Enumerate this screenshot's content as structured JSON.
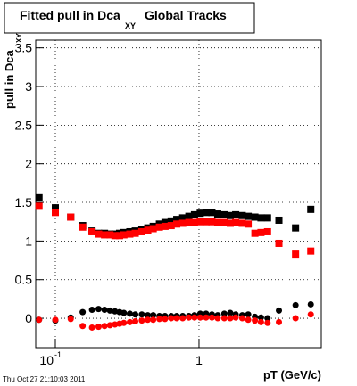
{
  "chart_data": {
    "type": "scatter",
    "title": "Fitted pull in Dca",
    "title_subscript": "XY",
    "title_suffix": "Global Tracks",
    "y_label": "pull in Dca",
    "y_label_subscript": "XY",
    "x_label": "pT (GeV/c)",
    "footer": "Thu Oct 27 21:10:03 2011",
    "log_x": true,
    "grid": true,
    "xlim": [
      0.073,
      7.1
    ],
    "ylim": [
      -0.38,
      3.6
    ],
    "xticks": [
      {
        "value": 0.1,
        "label": "10",
        "exponent": "-1"
      },
      1
    ],
    "yticks": [
      0,
      0.5,
      1,
      1.5,
      2,
      2.5,
      3,
      3.5
    ],
    "x": [
      0.077,
      0.1,
      0.128,
      0.155,
      0.18,
      0.2,
      0.22,
      0.24,
      0.26,
      0.28,
      0.3,
      0.33,
      0.36,
      0.4,
      0.44,
      0.48,
      0.53,
      0.58,
      0.64,
      0.7,
      0.77,
      0.85,
      0.93,
      1.02,
      1.12,
      1.23,
      1.35,
      1.5,
      1.65,
      1.8,
      2.0,
      2.2,
      2.45,
      2.7,
      3.0,
      3.6,
      4.7,
      6.0
    ],
    "series": [
      {
        "color": "#000000",
        "marker": "square",
        "values": [
          1.56,
          1.43,
          1.31,
          1.2,
          1.13,
          1.1,
          1.1,
          1.09,
          1.09,
          1.1,
          1.11,
          1.12,
          1.13,
          1.15,
          1.17,
          1.19,
          1.22,
          1.24,
          1.26,
          1.28,
          1.3,
          1.32,
          1.34,
          1.36,
          1.37,
          1.37,
          1.35,
          1.34,
          1.33,
          1.34,
          1.33,
          1.32,
          1.31,
          1.3,
          1.3,
          1.27,
          1.17,
          1.41
        ]
      },
      {
        "color": "#ff0000",
        "marker": "square",
        "values": [
          1.45,
          1.37,
          1.31,
          1.18,
          1.12,
          1.09,
          1.08,
          1.08,
          1.07,
          1.07,
          1.08,
          1.09,
          1.1,
          1.12,
          1.14,
          1.16,
          1.18,
          1.19,
          1.2,
          1.22,
          1.23,
          1.24,
          1.24,
          1.25,
          1.25,
          1.25,
          1.24,
          1.24,
          1.23,
          1.24,
          1.23,
          1.22,
          1.1,
          1.11,
          1.12,
          0.97,
          0.83,
          0.87
        ]
      },
      {
        "color": "#000000",
        "marker": "circle",
        "values": [
          -0.02,
          -0.03,
          0.01,
          0.08,
          0.11,
          0.12,
          0.11,
          0.1,
          0.09,
          0.08,
          0.07,
          0.06,
          0.05,
          0.05,
          0.04,
          0.04,
          0.03,
          0.03,
          0.03,
          0.03,
          0.03,
          0.03,
          0.04,
          0.06,
          0.06,
          0.05,
          0.04,
          0.06,
          0.07,
          0.05,
          0.04,
          0.05,
          0.02,
          0.01,
          0.0,
          0.1,
          0.17,
          0.18
        ]
      },
      {
        "color": "#ff0000",
        "marker": "circle",
        "values": [
          -0.02,
          -0.02,
          -0.01,
          -0.1,
          -0.12,
          -0.11,
          -0.1,
          -0.09,
          -0.08,
          -0.07,
          -0.06,
          -0.05,
          -0.04,
          -0.03,
          -0.02,
          -0.02,
          -0.01,
          -0.01,
          0.0,
          0.0,
          0.0,
          0.01,
          0.01,
          0.01,
          0.01,
          0.01,
          0.0,
          0.0,
          0.0,
          0.01,
          0.0,
          -0.02,
          -0.03,
          -0.05,
          -0.06,
          -0.05,
          0.0,
          0.05
        ]
      }
    ]
  }
}
